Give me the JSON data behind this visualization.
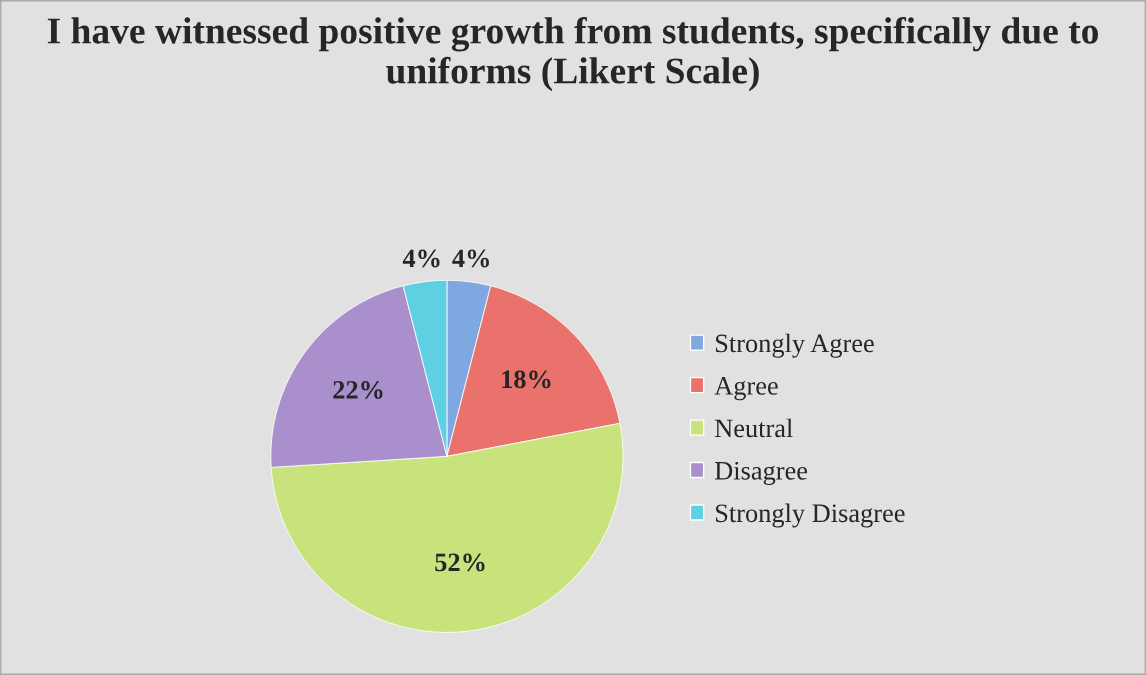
{
  "chart_data": {
    "type": "pie",
    "title": "I have witnessed positive growth from students, specifically due to uniforms (Likert Scale)",
    "categories": [
      "Strongly Agree",
      "Agree",
      "Neutral",
      "Disagree",
      "Strongly Disagree"
    ],
    "values": [
      4,
      18,
      52,
      22,
      4
    ],
    "colors": [
      "#7fa7e0",
      "#e9736c",
      "#c8e27c",
      "#a990cc",
      "#5fd0e2"
    ],
    "value_labels": [
      "4%",
      "18%",
      "52%",
      "22%",
      "4%"
    ],
    "legend": "right"
  }
}
